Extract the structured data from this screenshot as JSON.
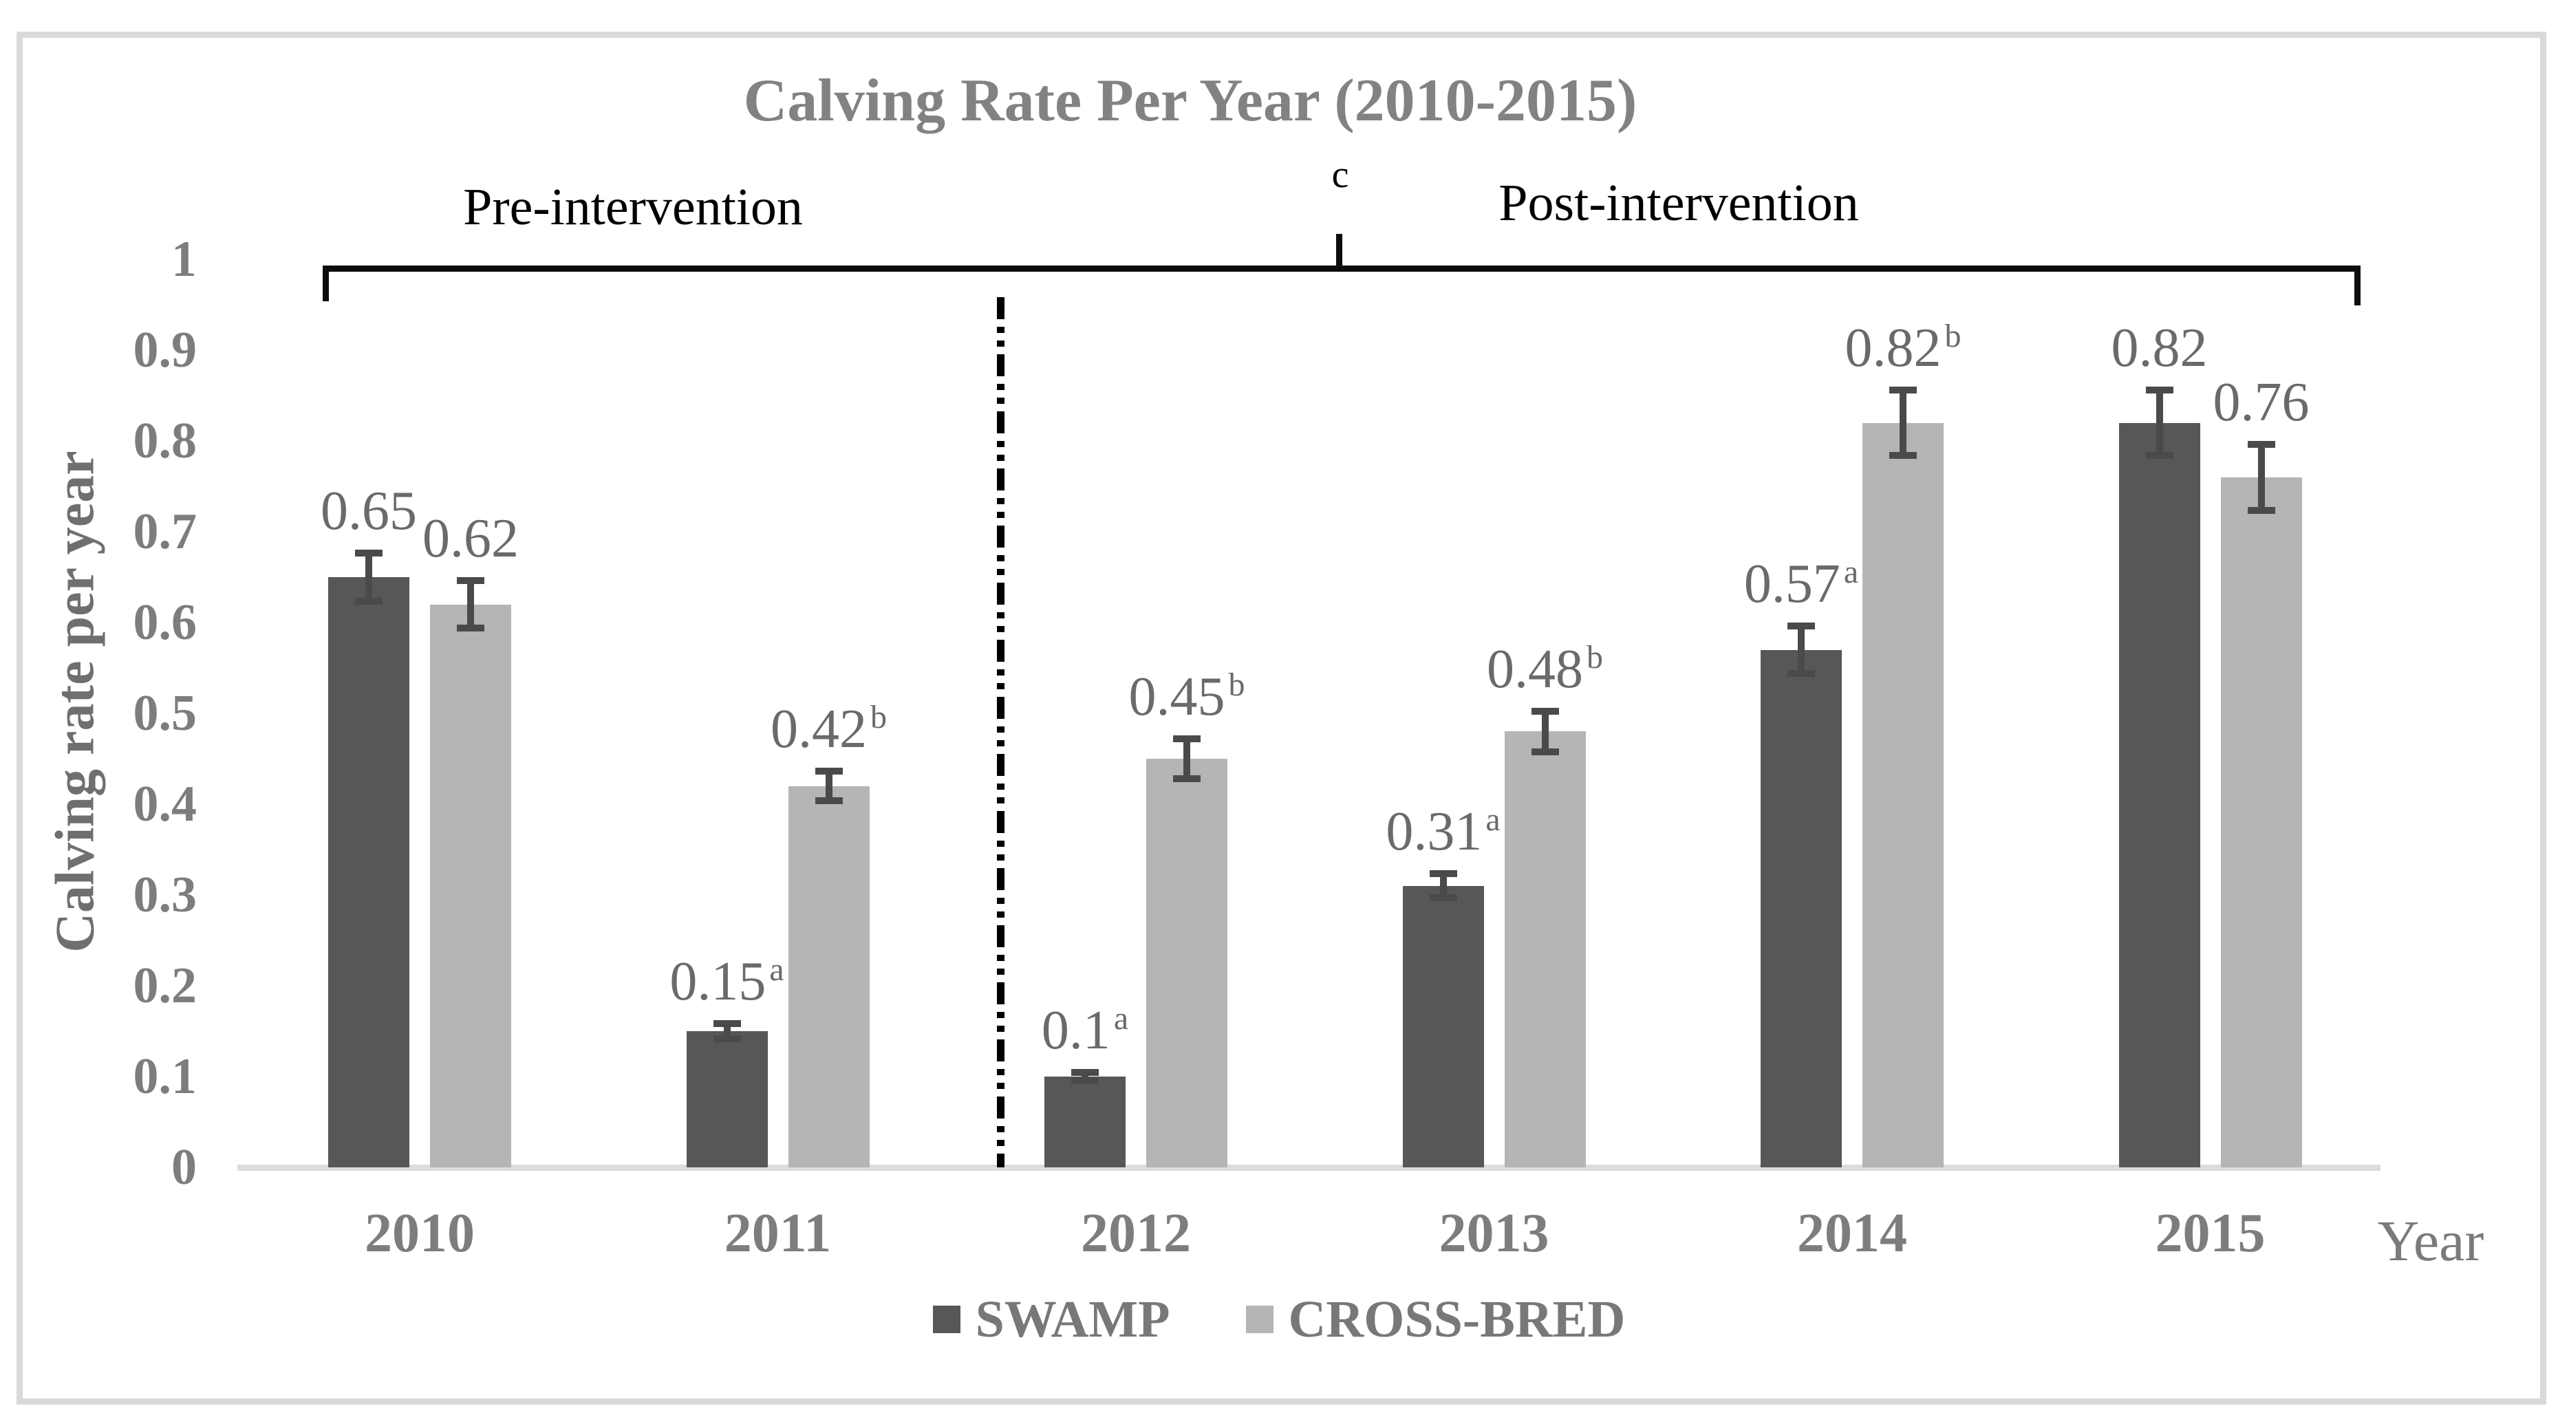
{
  "title": "Calving Rate Per Year (2010-2015)",
  "annotations": {
    "pre_intervention": "Pre-intervention",
    "post_intervention": "Post-intervention",
    "c_marker": "c"
  },
  "y_axis": {
    "title": "Calving rate per year",
    "ticks": [
      {
        "value": 1.0,
        "label": "1"
      },
      {
        "value": 0.9,
        "label": "0.9"
      },
      {
        "value": 0.8,
        "label": "0.8"
      },
      {
        "value": 0.7,
        "label": "0.7"
      },
      {
        "value": 0.6,
        "label": "0.6"
      },
      {
        "value": 0.5,
        "label": "0.5"
      },
      {
        "value": 0.4,
        "label": "0.4"
      },
      {
        "value": 0.3,
        "label": "0.3"
      },
      {
        "value": 0.2,
        "label": "0.2"
      },
      {
        "value": 0.1,
        "label": "0.1"
      },
      {
        "value": 0.0,
        "label": "0"
      }
    ]
  },
  "x_axis": {
    "title": "Year",
    "categories": [
      "2010",
      "2011",
      "2012",
      "2013",
      "2014",
      "2015"
    ]
  },
  "legend": [
    {
      "name": "SWAMP",
      "color": "#575757"
    },
    {
      "name": "CROSS-BRED",
      "color": "#b5b5b5"
    }
  ],
  "colors": {
    "swamp_bar": "#575757",
    "crossbred_bar": "#b5b5b5",
    "error_bar": "#4a4a4a",
    "axis_line": "#dcdcdc",
    "value_label_text": "#6a6a6a",
    "axis_text": "#7d7d7d",
    "title_text": "#828282",
    "annotation_text": "#000000",
    "frame_border": "#d9d9d9"
  },
  "chart_data": {
    "type": "bar",
    "title": "Calving Rate Per Year (2010-2015)",
    "xlabel": "Year",
    "ylabel": "Calving rate per year",
    "ylim": [
      0,
      1
    ],
    "ytick_step": 0.1,
    "grid": false,
    "legend_position": "bottom",
    "categories": [
      "2010",
      "2011",
      "2012",
      "2013",
      "2014",
      "2015"
    ],
    "phase_divider_between": [
      "2011",
      "2012"
    ],
    "phases": [
      {
        "label": "Pre-intervention",
        "categories": [
          "2010",
          "2011"
        ]
      },
      {
        "label": "Post-intervention",
        "categories": [
          "2012",
          "2013",
          "2014",
          "2015"
        ]
      }
    ],
    "bracket_marker": "c",
    "series": [
      {
        "name": "SWAMP",
        "color": "#575757",
        "values": [
          0.65,
          0.15,
          0.1,
          0.31,
          0.57,
          0.82
        ],
        "value_labels": [
          "0.65",
          "0.15",
          "0.1",
          "0.31",
          "0.57",
          "0.82"
        ],
        "superscripts": [
          "",
          "a",
          "a",
          "a",
          "a",
          ""
        ],
        "errors": [
          0.03,
          0.012,
          0.008,
          0.017,
          0.03,
          0.04
        ]
      },
      {
        "name": "CROSS-BRED",
        "color": "#b5b5b5",
        "values": [
          0.62,
          0.42,
          0.45,
          0.48,
          0.82,
          0.76
        ],
        "value_labels": [
          "0.62",
          "0.42",
          "0.45",
          "0.48",
          "0.82",
          "0.76"
        ],
        "superscripts": [
          "",
          "b",
          "b",
          "b",
          "b",
          ""
        ],
        "errors": [
          0.03,
          0.02,
          0.026,
          0.026,
          0.04,
          0.04
        ]
      }
    ]
  }
}
